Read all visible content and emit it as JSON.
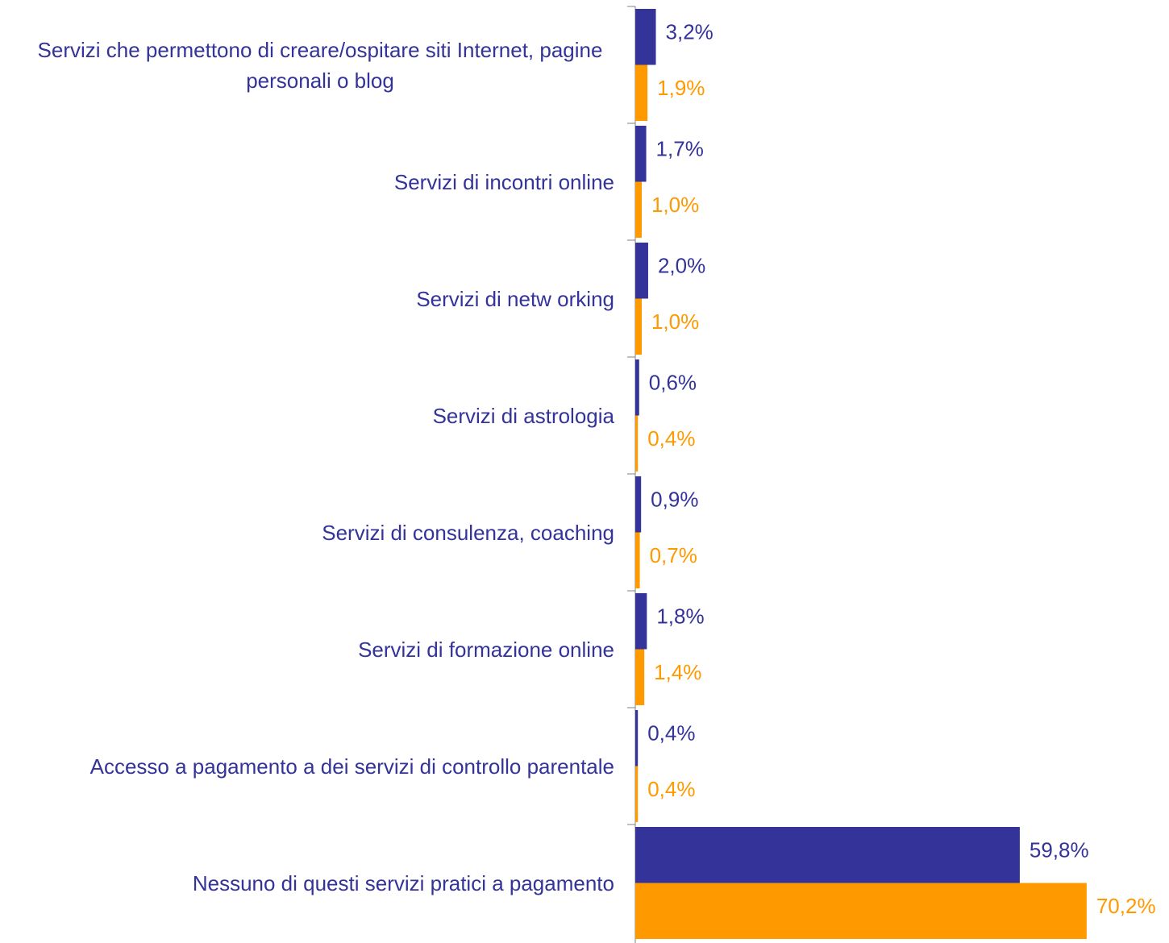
{
  "chart_data": {
    "type": "hbar",
    "categories": [
      "Servizi che permettono di creare/ospitare siti Internet, pagine personali o blog",
      "Servizi di incontri online",
      "Servizi di netw orking",
      "Servizi di astrologia",
      "Servizi di consulenza, coaching",
      "Servizi di formazione online",
      "Accesso a pagamento a dei servizi di controllo parentale",
      "Nessuno di questi servizi pratici a pagamento"
    ],
    "series": [
      {
        "color": "#333399",
        "values": [
          3.2,
          1.7,
          2.0,
          0.6,
          0.9,
          1.8,
          0.4,
          59.8
        ],
        "value_labels": [
          "3,2%",
          "1,7%",
          "2,0%",
          "0,6%",
          "0,9%",
          "1,8%",
          "0,4%",
          "59,8%"
        ]
      },
      {
        "color": "#ff9900",
        "values": [
          1.9,
          1.0,
          1.0,
          0.4,
          0.7,
          1.4,
          0.4,
          70.2
        ],
        "value_labels": [
          "1,9%",
          "1,0%",
          "1,0%",
          "0,4%",
          "0,7%",
          "1,4%",
          "0,4%",
          "70,2%"
        ]
      }
    ],
    "xlim": [
      0,
      80
    ]
  }
}
